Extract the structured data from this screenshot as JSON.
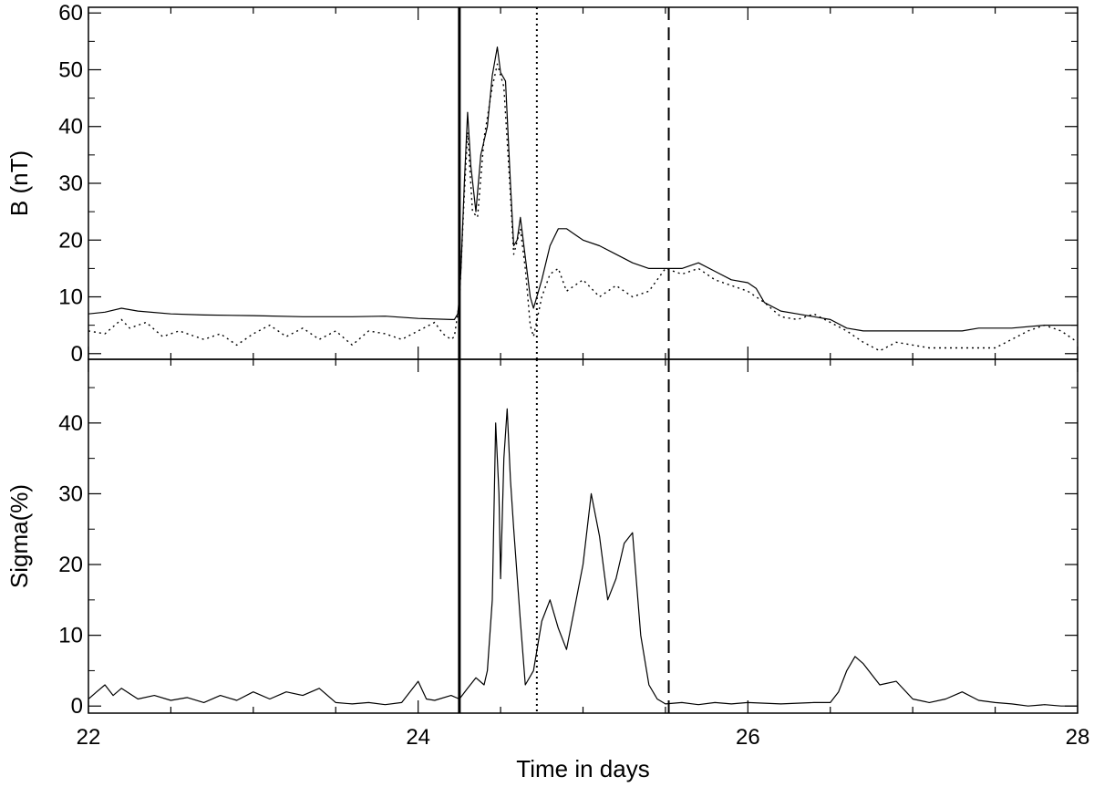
{
  "chart_data": [
    {
      "type": "line",
      "panel": "top",
      "xlabel": "",
      "ylabel": "B (nT)",
      "xlim": [
        22,
        28
      ],
      "ylim": [
        -1,
        61
      ],
      "yticks": [
        0,
        10,
        20,
        30,
        40,
        50,
        60
      ],
      "yticklabels": [
        "0",
        "10",
        "20",
        "30",
        "40",
        "50",
        "60"
      ],
      "xticks": [
        22,
        24,
        26,
        28
      ],
      "xticklabels": [],
      "grid": false,
      "series": [
        {
          "style": "solid",
          "points": [
            [
              22.0,
              7.0
            ],
            [
              22.1,
              7.3
            ],
            [
              22.2,
              8.0
            ],
            [
              22.3,
              7.5
            ],
            [
              22.5,
              7.0
            ],
            [
              22.7,
              6.8
            ],
            [
              23.0,
              6.7
            ],
            [
              23.3,
              6.5
            ],
            [
              23.6,
              6.5
            ],
            [
              23.8,
              6.6
            ],
            [
              24.0,
              6.2
            ],
            [
              24.2,
              6.0
            ],
            [
              24.22,
              6.0
            ],
            [
              24.24,
              7.0
            ],
            [
              24.25,
              10.0
            ],
            [
              24.26,
              15.0
            ],
            [
              24.28,
              30.0
            ],
            [
              24.3,
              42.5
            ],
            [
              24.32,
              33.0
            ],
            [
              24.35,
              25.0
            ],
            [
              24.38,
              35.0
            ],
            [
              24.42,
              40.0
            ],
            [
              24.45,
              49.0
            ],
            [
              24.48,
              54.0
            ],
            [
              24.5,
              49.5
            ],
            [
              24.53,
              48.0
            ],
            [
              24.56,
              30.0
            ],
            [
              24.58,
              19.0
            ],
            [
              24.6,
              20.0
            ],
            [
              24.62,
              24.0
            ],
            [
              24.65,
              17.0
            ],
            [
              24.68,
              10.0
            ],
            [
              24.7,
              8.0
            ],
            [
              24.75,
              13.0
            ],
            [
              24.8,
              19.0
            ],
            [
              24.85,
              22.0
            ],
            [
              24.9,
              22.0
            ],
            [
              25.0,
              20.0
            ],
            [
              25.1,
              19.0
            ],
            [
              25.2,
              17.5
            ],
            [
              25.3,
              16.0
            ],
            [
              25.4,
              15.0
            ],
            [
              25.5,
              15.0
            ],
            [
              25.6,
              15.0
            ],
            [
              25.7,
              16.0
            ],
            [
              25.8,
              14.5
            ],
            [
              25.9,
              13.0
            ],
            [
              26.0,
              12.5
            ],
            [
              26.05,
              11.5
            ],
            [
              26.1,
              9.0
            ],
            [
              26.2,
              7.5
            ],
            [
              26.3,
              7.0
            ],
            [
              26.4,
              6.5
            ],
            [
              26.5,
              6.0
            ],
            [
              26.6,
              4.5
            ],
            [
              26.7,
              4.0
            ],
            [
              27.0,
              4.0
            ],
            [
              27.3,
              4.0
            ],
            [
              27.4,
              4.5
            ],
            [
              27.6,
              4.5
            ],
            [
              27.8,
              5.0
            ],
            [
              28.0,
              5.0
            ]
          ]
        },
        {
          "style": "dotted",
          "points": [
            [
              22.0,
              4.0
            ],
            [
              22.1,
              3.5
            ],
            [
              22.2,
              6.0
            ],
            [
              22.25,
              4.5
            ],
            [
              22.35,
              5.5
            ],
            [
              22.45,
              3.0
            ],
            [
              22.55,
              4.0
            ],
            [
              22.7,
              2.5
            ],
            [
              22.8,
              3.5
            ],
            [
              22.9,
              1.5
            ],
            [
              23.0,
              3.5
            ],
            [
              23.1,
              5.0
            ],
            [
              23.2,
              3.0
            ],
            [
              23.3,
              4.5
            ],
            [
              23.4,
              2.5
            ],
            [
              23.5,
              4.0
            ],
            [
              23.6,
              1.5
            ],
            [
              23.7,
              4.0
            ],
            [
              23.8,
              3.5
            ],
            [
              23.9,
              2.5
            ],
            [
              24.0,
              4.0
            ],
            [
              24.1,
              5.5
            ],
            [
              24.15,
              3.5
            ],
            [
              24.2,
              2.5
            ],
            [
              24.22,
              3.0
            ],
            [
              24.25,
              9.0
            ],
            [
              24.28,
              28.0
            ],
            [
              24.3,
              39.0
            ],
            [
              24.33,
              25.0
            ],
            [
              24.36,
              24.0
            ],
            [
              24.4,
              38.0
            ],
            [
              24.45,
              47.0
            ],
            [
              24.48,
              51.0
            ],
            [
              24.52,
              47.0
            ],
            [
              24.56,
              28.0
            ],
            [
              24.58,
              17.5
            ],
            [
              24.62,
              22.0
            ],
            [
              24.65,
              15.0
            ],
            [
              24.68,
              5.0
            ],
            [
              24.7,
              3.0
            ],
            [
              24.75,
              10.0
            ],
            [
              24.8,
              14.0
            ],
            [
              24.85,
              15.0
            ],
            [
              24.9,
              11.0
            ],
            [
              25.0,
              13.0
            ],
            [
              25.1,
              10.0
            ],
            [
              25.2,
              12.0
            ],
            [
              25.3,
              10.0
            ],
            [
              25.4,
              11.0
            ],
            [
              25.5,
              15.0
            ],
            [
              25.6,
              14.0
            ],
            [
              25.7,
              15.0
            ],
            [
              25.8,
              13.0
            ],
            [
              25.9,
              12.0
            ],
            [
              26.0,
              11.0
            ],
            [
              26.1,
              9.0
            ],
            [
              26.2,
              6.5
            ],
            [
              26.3,
              6.0
            ],
            [
              26.4,
              7.0
            ],
            [
              26.5,
              5.5
            ],
            [
              26.6,
              4.0
            ],
            [
              26.7,
              2.0
            ],
            [
              26.8,
              0.5
            ],
            [
              26.9,
              2.0
            ],
            [
              27.0,
              1.5
            ],
            [
              27.1,
              1.0
            ],
            [
              27.3,
              1.0
            ],
            [
              27.5,
              1.0
            ],
            [
              27.6,
              2.5
            ],
            [
              27.7,
              4.0
            ],
            [
              27.8,
              5.0
            ],
            [
              27.9,
              4.0
            ],
            [
              28.0,
              2.0
            ]
          ]
        }
      ],
      "vertical_lines": [
        {
          "x": 24.25,
          "style": "solid"
        },
        {
          "x": 24.72,
          "style": "dotted"
        },
        {
          "x": 25.52,
          "style": "dashed"
        }
      ]
    },
    {
      "type": "line",
      "panel": "bottom",
      "xlabel": "Time in days",
      "ylabel": "Sigma(%)",
      "xlim": [
        22,
        28
      ],
      "ylim": [
        -1,
        49
      ],
      "yticks": [
        0,
        10,
        20,
        30,
        40
      ],
      "yticklabels": [
        "0",
        "10",
        "20",
        "30",
        "40"
      ],
      "xticks": [
        22,
        24,
        26,
        28
      ],
      "xticklabels": [
        "22",
        "24",
        "26",
        "28"
      ],
      "grid": false,
      "series": [
        {
          "style": "solid",
          "points": [
            [
              22.0,
              1.0
            ],
            [
              22.05,
              2.0
            ],
            [
              22.1,
              3.0
            ],
            [
              22.15,
              1.5
            ],
            [
              22.2,
              2.5
            ],
            [
              22.3,
              1.0
            ],
            [
              22.4,
              1.5
            ],
            [
              22.5,
              0.8
            ],
            [
              22.6,
              1.2
            ],
            [
              22.7,
              0.5
            ],
            [
              22.8,
              1.5
            ],
            [
              22.9,
              0.8
            ],
            [
              23.0,
              2.0
            ],
            [
              23.1,
              1.0
            ],
            [
              23.2,
              2.0
            ],
            [
              23.3,
              1.5
            ],
            [
              23.4,
              2.5
            ],
            [
              23.5,
              0.5
            ],
            [
              23.6,
              0.3
            ],
            [
              23.7,
              0.5
            ],
            [
              23.8,
              0.2
            ],
            [
              23.9,
              0.5
            ],
            [
              24.0,
              3.5
            ],
            [
              24.05,
              1.0
            ],
            [
              24.1,
              0.8
            ],
            [
              24.2,
              1.5
            ],
            [
              24.25,
              1.0
            ],
            [
              24.3,
              2.5
            ],
            [
              24.35,
              4.0
            ],
            [
              24.4,
              3.0
            ],
            [
              24.42,
              5.0
            ],
            [
              24.45,
              15.0
            ],
            [
              24.47,
              40.0
            ],
            [
              24.49,
              30.0
            ],
            [
              24.5,
              18.0
            ],
            [
              24.52,
              35.0
            ],
            [
              24.54,
              42.0
            ],
            [
              24.56,
              32.0
            ],
            [
              24.58,
              25.0
            ],
            [
              24.62,
              12.0
            ],
            [
              24.65,
              3.0
            ],
            [
              24.7,
              5.0
            ],
            [
              24.75,
              12.0
            ],
            [
              24.8,
              15.0
            ],
            [
              24.85,
              11.0
            ],
            [
              24.9,
              8.0
            ],
            [
              24.95,
              14.0
            ],
            [
              25.0,
              20.0
            ],
            [
              25.05,
              30.0
            ],
            [
              25.1,
              24.0
            ],
            [
              25.15,
              15.0
            ],
            [
              25.2,
              18.0
            ],
            [
              25.25,
              23.0
            ],
            [
              25.3,
              24.5
            ],
            [
              25.35,
              10.0
            ],
            [
              25.4,
              3.0
            ],
            [
              25.45,
              1.0
            ],
            [
              25.5,
              0.3
            ],
            [
              25.6,
              0.5
            ],
            [
              25.7,
              0.2
            ],
            [
              25.8,
              0.5
            ],
            [
              25.9,
              0.3
            ],
            [
              26.0,
              0.5
            ],
            [
              26.2,
              0.3
            ],
            [
              26.4,
              0.5
            ],
            [
              26.5,
              0.5
            ],
            [
              26.55,
              2.0
            ],
            [
              26.6,
              5.0
            ],
            [
              26.65,
              7.0
            ],
            [
              26.7,
              6.0
            ],
            [
              26.8,
              3.0
            ],
            [
              26.9,
              3.5
            ],
            [
              27.0,
              1.0
            ],
            [
              27.1,
              0.5
            ],
            [
              27.2,
              1.0
            ],
            [
              27.3,
              2.0
            ],
            [
              27.4,
              0.8
            ],
            [
              27.5,
              0.5
            ],
            [
              27.6,
              0.3
            ],
            [
              27.7,
              0.0
            ],
            [
              27.8,
              0.2
            ],
            [
              27.9,
              0.0
            ],
            [
              28.0,
              0.0
            ]
          ]
        }
      ],
      "vertical_lines": [
        {
          "x": 24.25,
          "style": "solid"
        },
        {
          "x": 24.72,
          "style": "dotted"
        },
        {
          "x": 25.52,
          "style": "dashed"
        }
      ]
    }
  ]
}
